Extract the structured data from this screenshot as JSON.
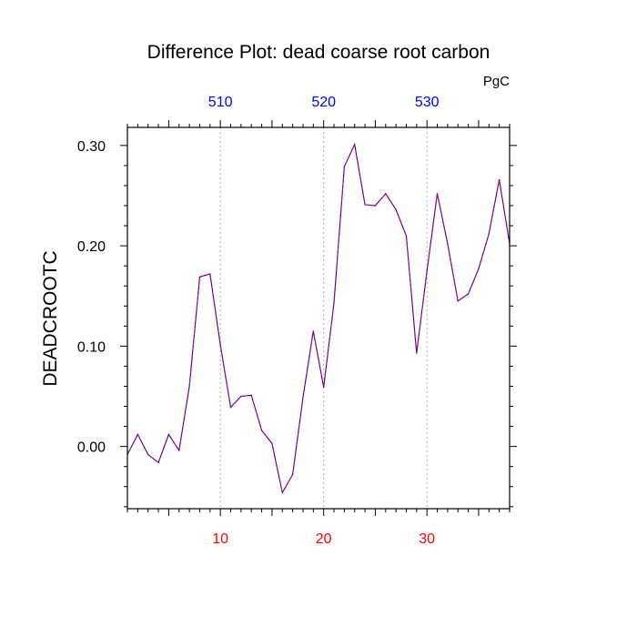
{
  "chart_data": {
    "type": "line",
    "title": "Difference Plot: dead coarse root carbon",
    "units": "PgC",
    "ylabel": "DEADCROOTC",
    "xlim": [
      1,
      38
    ],
    "ylim": [
      -0.062,
      0.318
    ],
    "grid": "vertical dotted lines at bottom x-axis ticks",
    "x_ticks": [
      10,
      20,
      30
    ],
    "x_tick_labels": [
      "10",
      "20",
      "30"
    ],
    "x_tick_color": "#ff0000",
    "top_axis": {
      "ticks": [
        10,
        20,
        30
      ],
      "tick_labels": [
        "510",
        "520",
        "530"
      ],
      "color": "#0000ff"
    },
    "y_ticks": [
      0.0,
      0.1,
      0.2,
      0.3
    ],
    "y_tick_labels": [
      "0.00",
      "0.10",
      "0.20",
      "0.30"
    ],
    "series": [
      {
        "color": "#0000ff",
        "dash_color": "#ff0000",
        "style": "dashed",
        "x": [
          1,
          2,
          3,
          4,
          5,
          6,
          7,
          8,
          9,
          10,
          11,
          12,
          13,
          14,
          15,
          16,
          17,
          18,
          19,
          20,
          21,
          22,
          23,
          24,
          25,
          26,
          27,
          28,
          29,
          30,
          31,
          32,
          33,
          34,
          35,
          36,
          37,
          38
        ],
        "values": [
          -0.008,
          0.012,
          -0.008,
          -0.016,
          0.012,
          -0.004,
          0.06,
          0.169,
          0.172,
          0.101,
          0.039,
          0.05,
          0.051,
          0.016,
          0.003,
          -0.046,
          -0.028,
          0.049,
          0.115,
          0.059,
          0.143,
          0.279,
          0.301,
          0.241,
          0.24,
          0.252,
          0.236,
          0.21,
          0.093,
          0.175,
          0.252,
          0.202,
          0.145,
          0.152,
          0.177,
          0.212,
          0.266,
          0.202
        ]
      }
    ]
  }
}
